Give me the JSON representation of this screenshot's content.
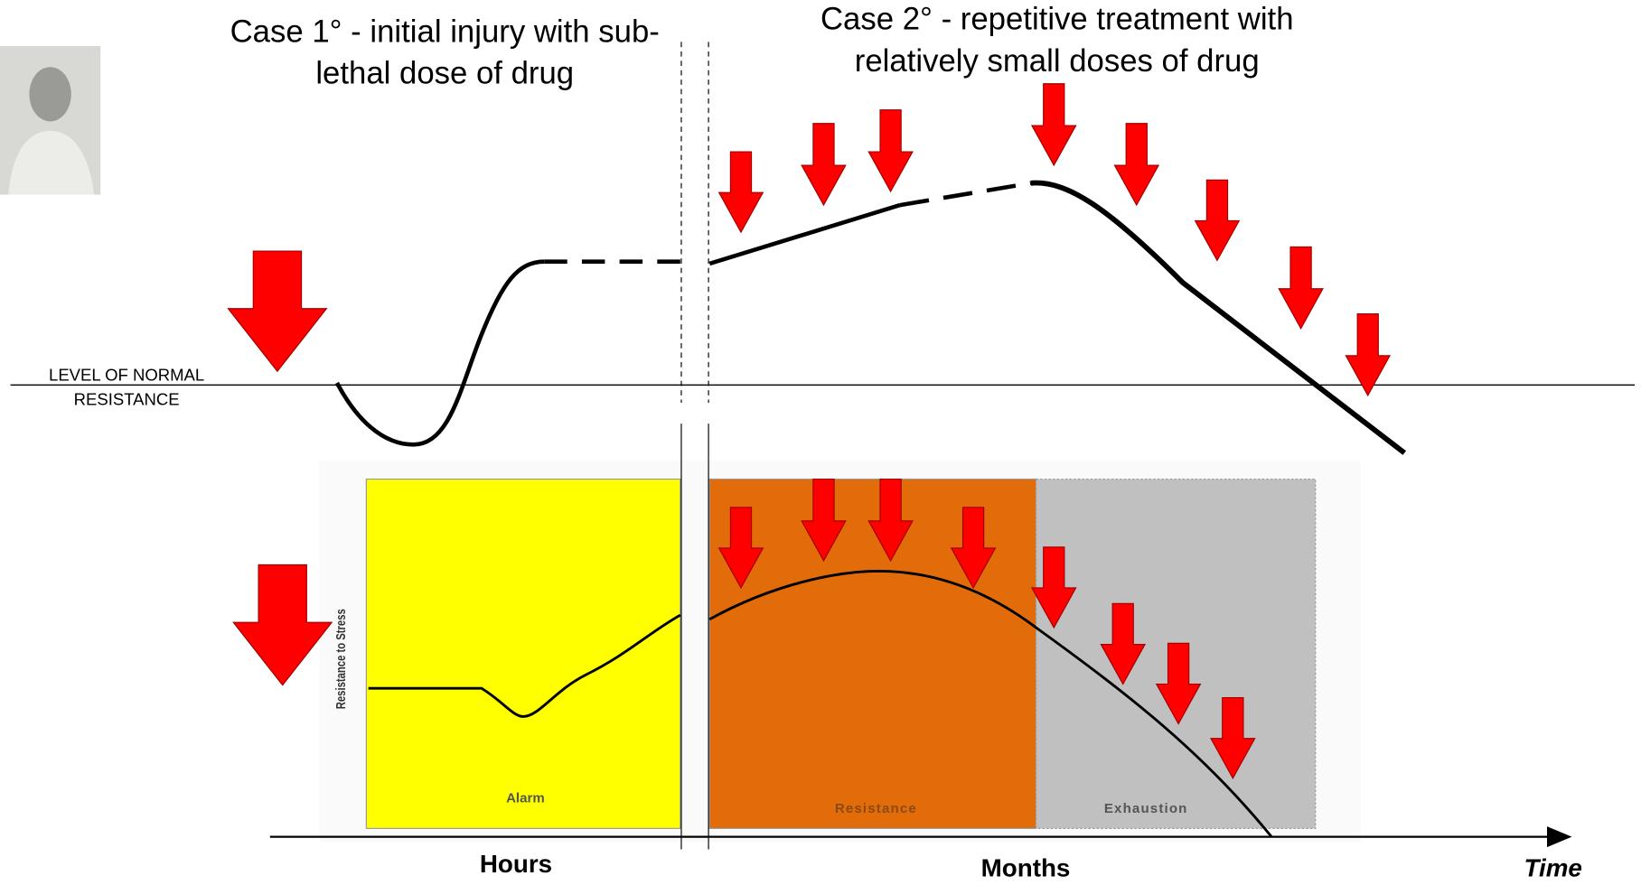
{
  "annotations": {
    "case1": [
      "Case 1° - initial injury with sub-",
      "lethal dose of drug"
    ],
    "case2": [
      "Case 2° - repetitive treatment with",
      "relatively small doses of drug"
    ]
  },
  "normal_level": [
    "LEVEL OF NORMAL",
    "RESISTANCE"
  ],
  "inset": {
    "y_axis_label": "Resistance to Stress",
    "phases": [
      "Alarm",
      "Resistance",
      "Exhaustion"
    ]
  },
  "time_axis": {
    "labels": [
      "Hours",
      "Months"
    ],
    "title": "Time"
  }
}
